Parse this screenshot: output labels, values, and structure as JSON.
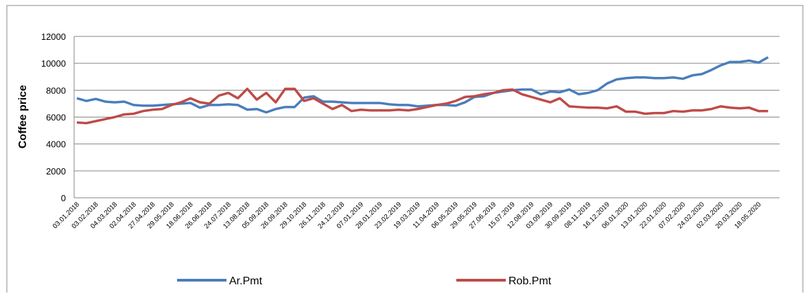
{
  "chart_data": {
    "type": "line",
    "y_label": "Coffee price",
    "categories": [
      "03.01.2018",
      null,
      "03.02.2018",
      null,
      "04.03.2018",
      null,
      "02.04.2018",
      null,
      "27.04.2018",
      null,
      "29.05.2018",
      null,
      "18.06.2018",
      null,
      "26.06.2018",
      null,
      "24.07.2018",
      null,
      "13.08.2018",
      null,
      "05.09.2018",
      null,
      "26.09.2018",
      null,
      "29.10.2018",
      null,
      "26.11.2018",
      null,
      "24.12.2018",
      null,
      "07.01.2019",
      null,
      "28.01.2019",
      null,
      "23.02.2019",
      null,
      "19.03.2019",
      null,
      "11.04.2019",
      null,
      "06.05.2019",
      null,
      "29.05.2019",
      null,
      "27.06.2019",
      null,
      "15.07.2019",
      null,
      "12.08.2019",
      null,
      "03.09.2019",
      null,
      "30.09.2019",
      null,
      "08.11.2019",
      null,
      "16.12.2019",
      null,
      "06.01.2020",
      null,
      "13.01.2020",
      null,
      "22.01.2020",
      null,
      "07.02.2020",
      null,
      "24.02.2020",
      null,
      "02.03.2020",
      null,
      "20.03.2020",
      null,
      "18.05.2020",
      null
    ],
    "series": [
      {
        "name": "Ar.Pmt",
        "color": "#4a7ebb",
        "values": [
          7400,
          7200,
          7350,
          7150,
          7100,
          7150,
          6900,
          6850,
          6850,
          6900,
          6950,
          7000,
          7050,
          6700,
          6900,
          6900,
          6950,
          6900,
          6550,
          6600,
          6350,
          6600,
          6750,
          6750,
          7450,
          7550,
          7150,
          7150,
          7100,
          7050,
          7050,
          7050,
          7050,
          6950,
          6900,
          6900,
          6800,
          6850,
          6900,
          6900,
          6850,
          7100,
          7500,
          7550,
          7800,
          7900,
          8000,
          8050,
          8050,
          7700,
          7900,
          7850,
          8050,
          7700,
          7800,
          8000,
          8500,
          8800,
          8900,
          8950,
          8950,
          8900,
          8900,
          8950,
          8850,
          9100,
          9200,
          9500,
          9850,
          10100,
          10100,
          10200,
          10050,
          10450
        ]
      },
      {
        "name": "Rob.Pmt",
        "color": "#be4b48",
        "values": [
          5600,
          5550,
          5700,
          5850,
          6000,
          6200,
          6250,
          6450,
          6550,
          6600,
          6900,
          7100,
          7400,
          7100,
          7000,
          7600,
          7800,
          7400,
          8100,
          7300,
          7800,
          7100,
          8100,
          8100,
          7200,
          7400,
          7000,
          6600,
          6900,
          6450,
          6550,
          6500,
          6500,
          6500,
          6550,
          6500,
          6600,
          6750,
          6900,
          7000,
          7200,
          7500,
          7550,
          7700,
          7800,
          8000,
          8050,
          7700,
          7500,
          7300,
          7100,
          7400,
          6800,
          6750,
          6700,
          6700,
          6650,
          6800,
          6400,
          6400,
          6250,
          6300,
          6300,
          6450,
          6400,
          6500,
          6500,
          6600,
          6800,
          6700,
          6650,
          6700,
          6450,
          6450
        ]
      }
    ],
    "ylim": [
      0,
      12000
    ],
    "yticks": [
      0,
      2000,
      4000,
      6000,
      8000,
      10000,
      12000
    ],
    "grid": true,
    "legend": "bottom"
  }
}
